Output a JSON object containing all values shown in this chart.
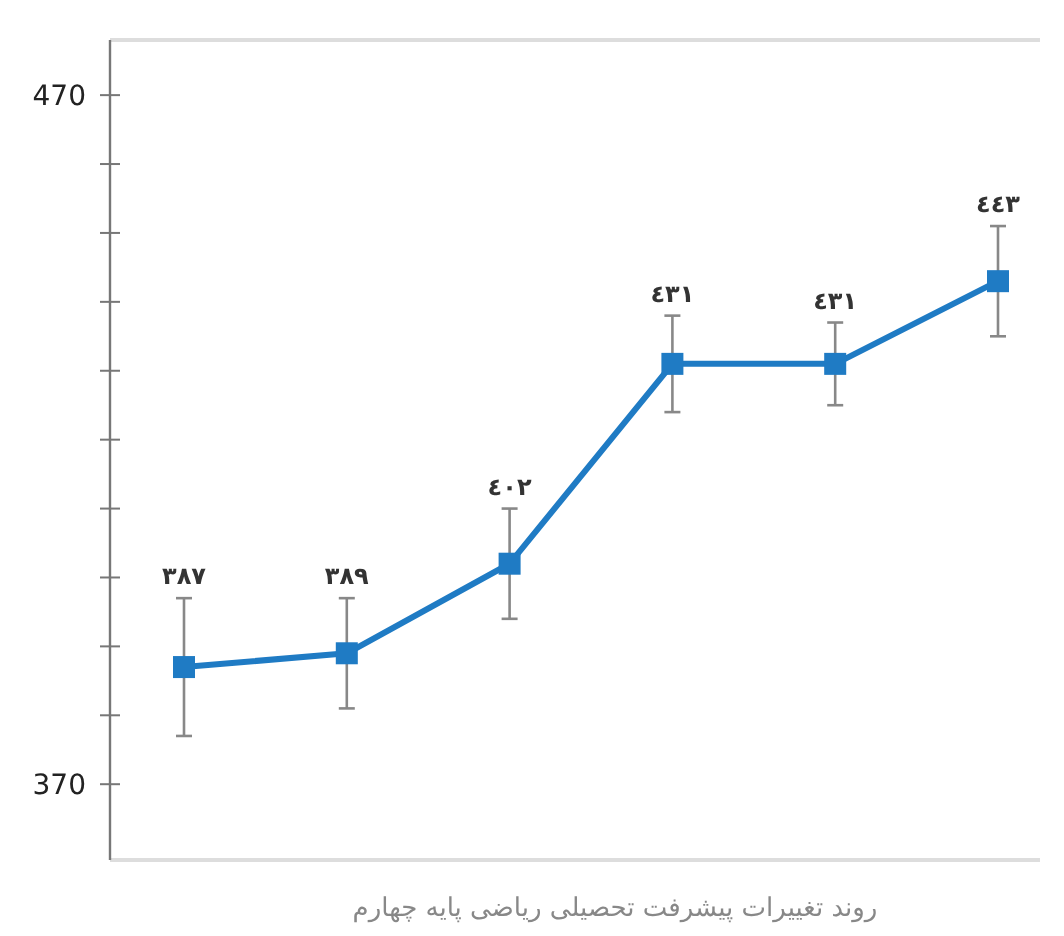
{
  "chart_data": {
    "type": "line",
    "title": "روند تغییرات پیشرفت تحصیلی ریاضی پایه چهارم",
    "categories": [
      null,
      null,
      null,
      null,
      null,
      null
    ],
    "values": [
      387,
      389,
      402,
      431,
      431,
      443
    ],
    "errors": [
      10,
      8,
      8,
      7,
      6,
      8
    ],
    "value_labels": [
      "٣٨٧",
      "٣٨٩",
      "٤٠٢",
      "٤٣١",
      "٤٣١",
      "٤٤٣"
    ],
    "color": "#1f7bc4",
    "marker": "square",
    "line_style": "solid",
    "ylim": [
      359,
      478
    ],
    "yticks": [
      370,
      {
        "value": 380,
        "label": null
      },
      {
        "value": 390,
        "label": null
      },
      {
        "value": 400,
        "label": null
      },
      {
        "value": 410,
        "label": null
      },
      {
        "value": 420,
        "label": null
      },
      {
        "value": 430,
        "label": null
      },
      {
        "value": 440,
        "label": null
      },
      {
        "value": 450,
        "label": null
      },
      {
        "value": 460,
        "label": null
      },
      470
    ],
    "tick_labels": "y"
  }
}
